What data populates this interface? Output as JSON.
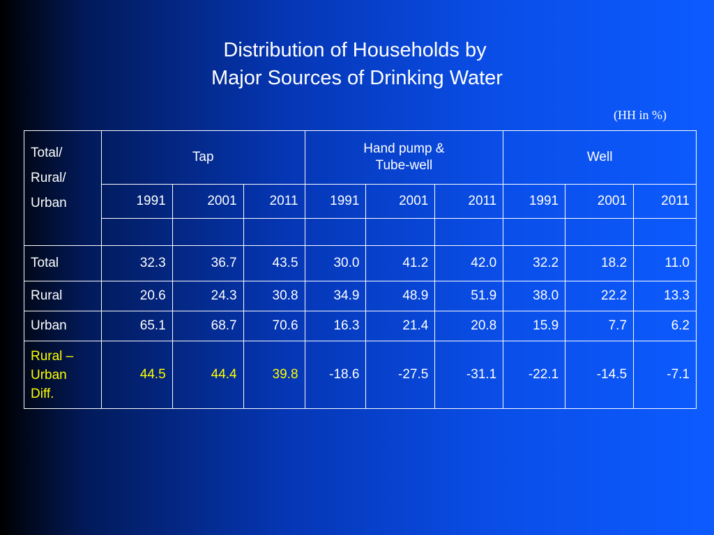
{
  "title": {
    "line1": "Distribution of Households by",
    "line2": "Major Sources of Drinking Water"
  },
  "unit_note": "(HH in %)",
  "table": {
    "stub_header": [
      "Total/",
      "Rural/",
      "Urban"
    ],
    "groups": {
      "tap": "Tap",
      "hand_pump": [
        "Hand pump &",
        "Tube-well"
      ],
      "well": "Well"
    },
    "years": [
      "1991",
      "2001",
      "2011",
      "1991",
      "2001",
      "2011",
      "1991",
      "2001",
      "2011"
    ],
    "rows": [
      {
        "label": [
          "Total"
        ],
        "values": [
          "32.3",
          "36.7",
          "43.5",
          "30.0",
          "41.2",
          "42.0",
          "32.2",
          "18.2",
          "11.0"
        ]
      },
      {
        "label": [
          "Rural"
        ],
        "values": [
          "20.6",
          "24.3",
          "30.8",
          "34.9",
          "48.9",
          "51.9",
          "38.0",
          "22.2",
          "13.3"
        ]
      },
      {
        "label": [
          "Urban"
        ],
        "values": [
          "65.1",
          "68.7",
          "70.6",
          "16.3",
          "21.4",
          "20.8",
          "15.9",
          "7.7",
          "6.2"
        ]
      },
      {
        "label": [
          "Rural –",
          "Urban",
          "Diff."
        ],
        "values": [
          "44.5",
          "44.4",
          "39.8",
          "-18.6",
          "-27.5",
          "-31.1",
          "-22.1",
          "-14.5",
          "-7.1"
        ]
      }
    ]
  },
  "colors": {
    "text": "#ffffff",
    "highlight": "#ffff00",
    "background_start": "#000000",
    "background_end": "#0d5bff"
  }
}
